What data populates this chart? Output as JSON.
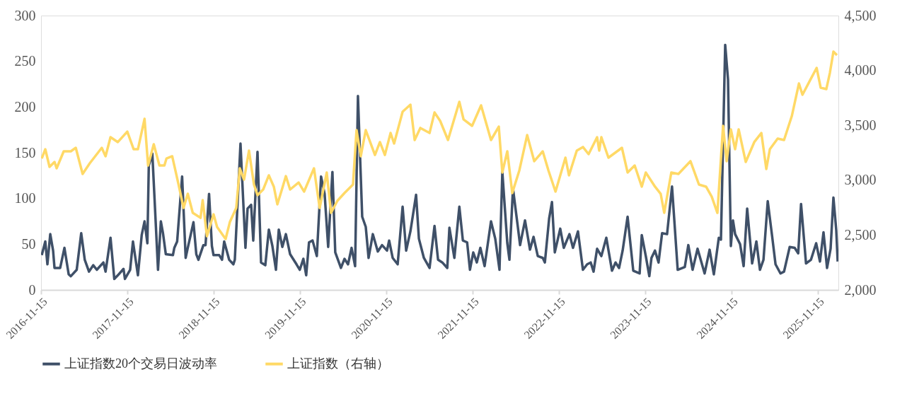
{
  "chart_data": {
    "type": "line",
    "xlim": [
      "2016-11-15",
      "2026-02-10"
    ],
    "xticks": [
      "2016-11-15",
      "2017-11-15",
      "2018-11-15",
      "2019-11-15",
      "2020-11-15",
      "2021-11-15",
      "2022-11-15",
      "2023-11-15",
      "2024-11-15",
      "2025-11-15"
    ],
    "ylim": [
      0,
      300
    ],
    "yticks": [
      0,
      50,
      100,
      150,
      200,
      250,
      300
    ],
    "y2lim": [
      2000,
      4500
    ],
    "y2ticks": [
      {
        "value": 2000,
        "label": "2,000"
      },
      {
        "value": 2500,
        "label": "2,500"
      },
      {
        "value": 3000,
        "label": "3,000"
      },
      {
        "value": 3500,
        "label": "3,500"
      },
      {
        "value": 4000,
        "label": "4,000"
      },
      {
        "value": 4500,
        "label": "4,500"
      }
    ],
    "grid": false,
    "legend": "bottom",
    "marker": "none",
    "line_style": "solid",
    "series": [
      {
        "name": "上证指数20个交易日波动率",
        "color": "#3f5068",
        "x": [
          "2016-11-18",
          "2016-12-03",
          "2016-12-12",
          "2016-12-24",
          "2017-01-05",
          "2017-01-11",
          "2017-02-04",
          "2017-02-22",
          "2017-03-12",
          "2017-03-21",
          "2017-04-15",
          "2017-05-04",
          "2017-05-19",
          "2017-06-06",
          "2017-06-24",
          "2017-07-09",
          "2017-08-06",
          "2017-08-15",
          "2017-09-05",
          "2017-09-21",
          "2017-10-06",
          "2017-10-30",
          "2017-11-05",
          "2017-11-27",
          "2017-12-09",
          "2017-12-30",
          "2018-01-15",
          "2018-01-27",
          "2018-02-08",
          "2018-02-14",
          "2018-03-01",
          "2018-03-25",
          "2018-04-06",
          "2018-04-15",
          "2018-04-27",
          "2018-05-27",
          "2018-06-02",
          "2018-06-14",
          "2018-07-05",
          "2018-07-20",
          "2018-07-29",
          "2018-08-22",
          "2018-09-03",
          "2018-09-12",
          "2018-10-03",
          "2018-10-12",
          "2018-10-27",
          "2018-11-08",
          "2018-11-15",
          "2018-12-09",
          "2018-12-21",
          "2018-12-30",
          "2019-01-20",
          "2019-02-07",
          "2019-02-13",
          "2019-03-09",
          "2019-03-30",
          "2019-04-08",
          "2019-04-23",
          "2019-05-02",
          "2019-05-20",
          "2019-06-04",
          "2019-06-22",
          "2019-07-07",
          "2019-07-22",
          "2019-08-06",
          "2019-08-18",
          "2019-09-02",
          "2019-09-17",
          "2019-10-05",
          "2019-11-01",
          "2019-11-15",
          "2019-11-30",
          "2019-12-12",
          "2019-12-24",
          "2020-01-08",
          "2020-01-26",
          "2020-02-13",
          "2020-02-28",
          "2020-03-14",
          "2020-04-01",
          "2020-04-13",
          "2020-05-07",
          "2020-05-22",
          "2020-06-06",
          "2020-06-21",
          "2020-07-06",
          "2020-07-18",
          "2020-08-05",
          "2020-08-20",
          "2020-09-01",
          "2020-09-19",
          "2020-10-10",
          "2020-10-28",
          "2020-11-18",
          "2020-11-27",
          "2020-12-12",
          "2021-01-02",
          "2021-01-23",
          "2021-02-07",
          "2021-02-25",
          "2021-03-21",
          "2021-04-02",
          "2021-04-23",
          "2021-05-17",
          "2021-06-07",
          "2021-06-22",
          "2021-07-10",
          "2021-07-31",
          "2021-08-09",
          "2021-08-30",
          "2021-09-20",
          "2021-10-05",
          "2021-10-23",
          "2021-11-04",
          "2021-11-18",
          "2021-12-03",
          "2021-12-18",
          "2022-01-05",
          "2022-02-01",
          "2022-02-19",
          "2022-03-09",
          "2022-03-21",
          "2022-04-11",
          "2022-04-20",
          "2022-05-05",
          "2022-05-26",
          "2022-06-04",
          "2022-06-25",
          "2022-07-16",
          "2022-07-31",
          "2022-08-18",
          "2022-09-08",
          "2022-09-17",
          "2022-10-05",
          "2022-10-17",
          "2022-10-29",
          "2022-11-21",
          "2022-12-06",
          "2022-12-30",
          "2023-01-14",
          "2023-02-04",
          "2023-02-25",
          "2023-03-15",
          "2023-03-30",
          "2023-04-11",
          "2023-04-26",
          "2023-05-14",
          "2023-06-04",
          "2023-06-28",
          "2023-07-13",
          "2023-07-28",
          "2023-08-12",
          "2023-09-02",
          "2023-09-26",
          "2023-10-23",
          "2023-11-01",
          "2023-11-18",
          "2023-12-03",
          "2023-12-12",
          "2023-12-27",
          "2024-01-11",
          "2024-01-26",
          "2024-02-16",
          "2024-03-08",
          "2024-04-01",
          "2024-05-01",
          "2024-05-16",
          "2024-06-03",
          "2024-06-24",
          "2024-07-24",
          "2024-08-14",
          "2024-09-01",
          "2024-09-22",
          "2024-10-01",
          "2024-10-19",
          "2024-10-31",
          "2024-11-12",
          "2024-11-21",
          "2024-11-30",
          "2024-12-21",
          "2025-01-05",
          "2025-01-20",
          "2025-02-10",
          "2025-02-28",
          "2025-03-15",
          "2025-03-30",
          "2025-04-17",
          "2025-05-05",
          "2025-05-20",
          "2025-06-10",
          "2025-06-25",
          "2025-07-19",
          "2025-08-09",
          "2025-08-24",
          "2025-09-05",
          "2025-09-26",
          "2025-10-17",
          "2025-11-08",
          "2025-11-24",
          "2025-12-09",
          "2025-12-24",
          "2026-01-08",
          "2026-01-20",
          "2026-02-01",
          "2026-02-07"
        ],
        "values": [
          38,
          53,
          28,
          61,
          43,
          24,
          24,
          46,
          17,
          15,
          22,
          62,
          33,
          20,
          27,
          22,
          30,
          20,
          57,
          12,
          16,
          23,
          12,
          22,
          53,
          16,
          60,
          75,
          51,
          136,
          149,
          22,
          75,
          62,
          39,
          38,
          46,
          53,
          124,
          35,
          46,
          74,
          39,
          33,
          49,
          49,
          105,
          48,
          38,
          38,
          33,
          53,
          33,
          28,
          33,
          160,
          46,
          89,
          93,
          54,
          151,
          30,
          27,
          66,
          48,
          22,
          66,
          47,
          61,
          39,
          28,
          22,
          34,
          16,
          52,
          54,
          37,
          124,
          105,
          47,
          129,
          41,
          24,
          34,
          28,
          46,
          26,
          212,
          80,
          69,
          35,
          61,
          42,
          49,
          43,
          54,
          35,
          28,
          91,
          43,
          64,
          104,
          56,
          35,
          24,
          70,
          33,
          30,
          24,
          68,
          35,
          91,
          54,
          52,
          22,
          41,
          30,
          46,
          26,
          75,
          56,
          22,
          129,
          51,
          33,
          111,
          68,
          49,
          76,
          44,
          58,
          37,
          35,
          30,
          78,
          96,
          41,
          67,
          46,
          61,
          46,
          64,
          22,
          28,
          30,
          20,
          45,
          37,
          57,
          21,
          30,
          24,
          43,
          80,
          21,
          18,
          60,
          37,
          15,
          35,
          43,
          30,
          62,
          61,
          113,
          22,
          25,
          49,
          22,
          45,
          18,
          44,
          17,
          57,
          55,
          268,
          230,
          48,
          76,
          61,
          50,
          26,
          89,
          29,
          53,
          22,
          33,
          97,
          60,
          28,
          18,
          20,
          47,
          46,
          40,
          94,
          29,
          33,
          51,
          31,
          63,
          24,
          45,
          101,
          65,
          31
        ]
      },
      {
        "name": "上证指数（右轴）",
        "color": "#ffd966",
        "axis": "y2",
        "x": [
          "2016-11-18",
          "2016-12-03",
          "2016-12-21",
          "2017-01-11",
          "2017-01-20",
          "2017-02-19",
          "2017-03-21",
          "2017-04-11",
          "2017-05-10",
          "2017-06-09",
          "2017-07-30",
          "2017-08-15",
          "2017-09-05",
          "2017-10-06",
          "2017-11-15",
          "2017-12-12",
          "2017-12-30",
          "2018-01-27",
          "2018-02-11",
          "2018-03-07",
          "2018-03-31",
          "2018-04-21",
          "2018-04-30",
          "2018-05-24",
          "2018-06-20",
          "2018-07-11",
          "2018-07-29",
          "2018-08-19",
          "2018-09-21",
          "2018-09-30",
          "2018-10-18",
          "2018-11-15",
          "2018-11-30",
          "2019-01-05",
          "2019-01-23",
          "2019-02-19",
          "2019-03-06",
          "2019-03-24",
          "2019-04-14",
          "2019-05-05",
          "2019-05-20",
          "2019-06-13",
          "2019-07-07",
          "2019-07-28",
          "2019-08-12",
          "2019-09-02",
          "2019-09-17",
          "2019-10-05",
          "2019-11-10",
          "2019-12-03",
          "2020-01-14",
          "2020-02-07",
          "2020-03-08",
          "2020-03-26",
          "2020-04-22",
          "2020-05-22",
          "2020-06-27",
          "2020-07-12",
          "2020-07-30",
          "2020-08-20",
          "2020-09-28",
          "2020-10-19",
          "2020-11-09",
          "2020-12-03",
          "2020-12-18",
          "2021-01-23",
          "2021-02-25",
          "2021-03-15",
          "2021-04-08",
          "2021-05-17",
          "2021-06-07",
          "2021-07-01",
          "2021-08-03",
          "2021-09-20",
          "2021-10-08",
          "2021-11-13",
          "2021-12-21",
          "2022-02-01",
          "2022-03-06",
          "2022-03-21",
          "2022-04-11",
          "2022-05-02",
          "2022-06-01",
          "2022-07-04",
          "2022-08-03",
          "2022-09-08",
          "2022-10-02",
          "2022-11-01",
          "2022-12-13",
          "2022-12-28",
          "2023-01-30",
          "2023-02-25",
          "2023-03-21",
          "2023-04-26",
          "2023-05-05",
          "2023-05-14",
          "2023-06-13",
          "2023-08-09",
          "2023-09-02",
          "2023-10-02",
          "2023-11-01",
          "2023-11-18",
          "2023-12-27",
          "2024-01-20",
          "2024-02-04",
          "2024-03-05",
          "2024-04-04",
          "2024-05-25",
          "2024-06-30",
          "2024-07-30",
          "2024-08-23",
          "2024-09-16",
          "2024-10-10",
          "2024-10-25",
          "2024-11-12",
          "2024-11-30",
          "2024-12-15",
          "2025-01-14",
          "2025-02-19",
          "2025-03-21",
          "2025-04-11",
          "2025-04-26",
          "2025-05-29",
          "2025-06-25",
          "2025-07-28",
          "2025-08-27",
          "2025-09-11",
          "2025-10-17",
          "2025-11-10",
          "2025-11-27",
          "2025-12-21",
          "2026-01-05",
          "2026-01-20",
          "2026-02-04"
        ],
        "values": [
          3198,
          3282,
          3121,
          3166,
          3108,
          3263,
          3263,
          3295,
          3057,
          3153,
          3295,
          3218,
          3392,
          3347,
          3443,
          3282,
          3282,
          3559,
          3134,
          3327,
          3134,
          3134,
          3198,
          3218,
          2960,
          2747,
          2876,
          2702,
          2657,
          2818,
          2490,
          2689,
          2573,
          2464,
          2618,
          2747,
          3108,
          3005,
          3269,
          2960,
          2863,
          2915,
          3044,
          2941,
          2780,
          2928,
          3037,
          2915,
          2979,
          2896,
          3108,
          2747,
          3070,
          2702,
          2812,
          2883,
          2960,
          3456,
          3218,
          3456,
          3230,
          3347,
          3230,
          3430,
          3334,
          3624,
          3688,
          3366,
          3476,
          3430,
          3617,
          3540,
          3366,
          3714,
          3553,
          3495,
          3682,
          3366,
          3488,
          3070,
          3263,
          2883,
          3089,
          3411,
          3173,
          3263,
          3089,
          2896,
          3205,
          3044,
          3269,
          3302,
          3237,
          3392,
          3269,
          3392,
          3205,
          3295,
          3070,
          3134,
          2941,
          3070,
          2941,
          2876,
          2702,
          3070,
          3057,
          3173,
          2960,
          2941,
          2850,
          2702,
          3495,
          3173,
          3463,
          3282,
          3463,
          3166,
          3347,
          3430,
          3102,
          3282,
          3379,
          3366,
          3585,
          3881,
          3778,
          3926,
          4023,
          3843,
          3830,
          3978,
          4171,
          4139
        ]
      }
    ]
  }
}
